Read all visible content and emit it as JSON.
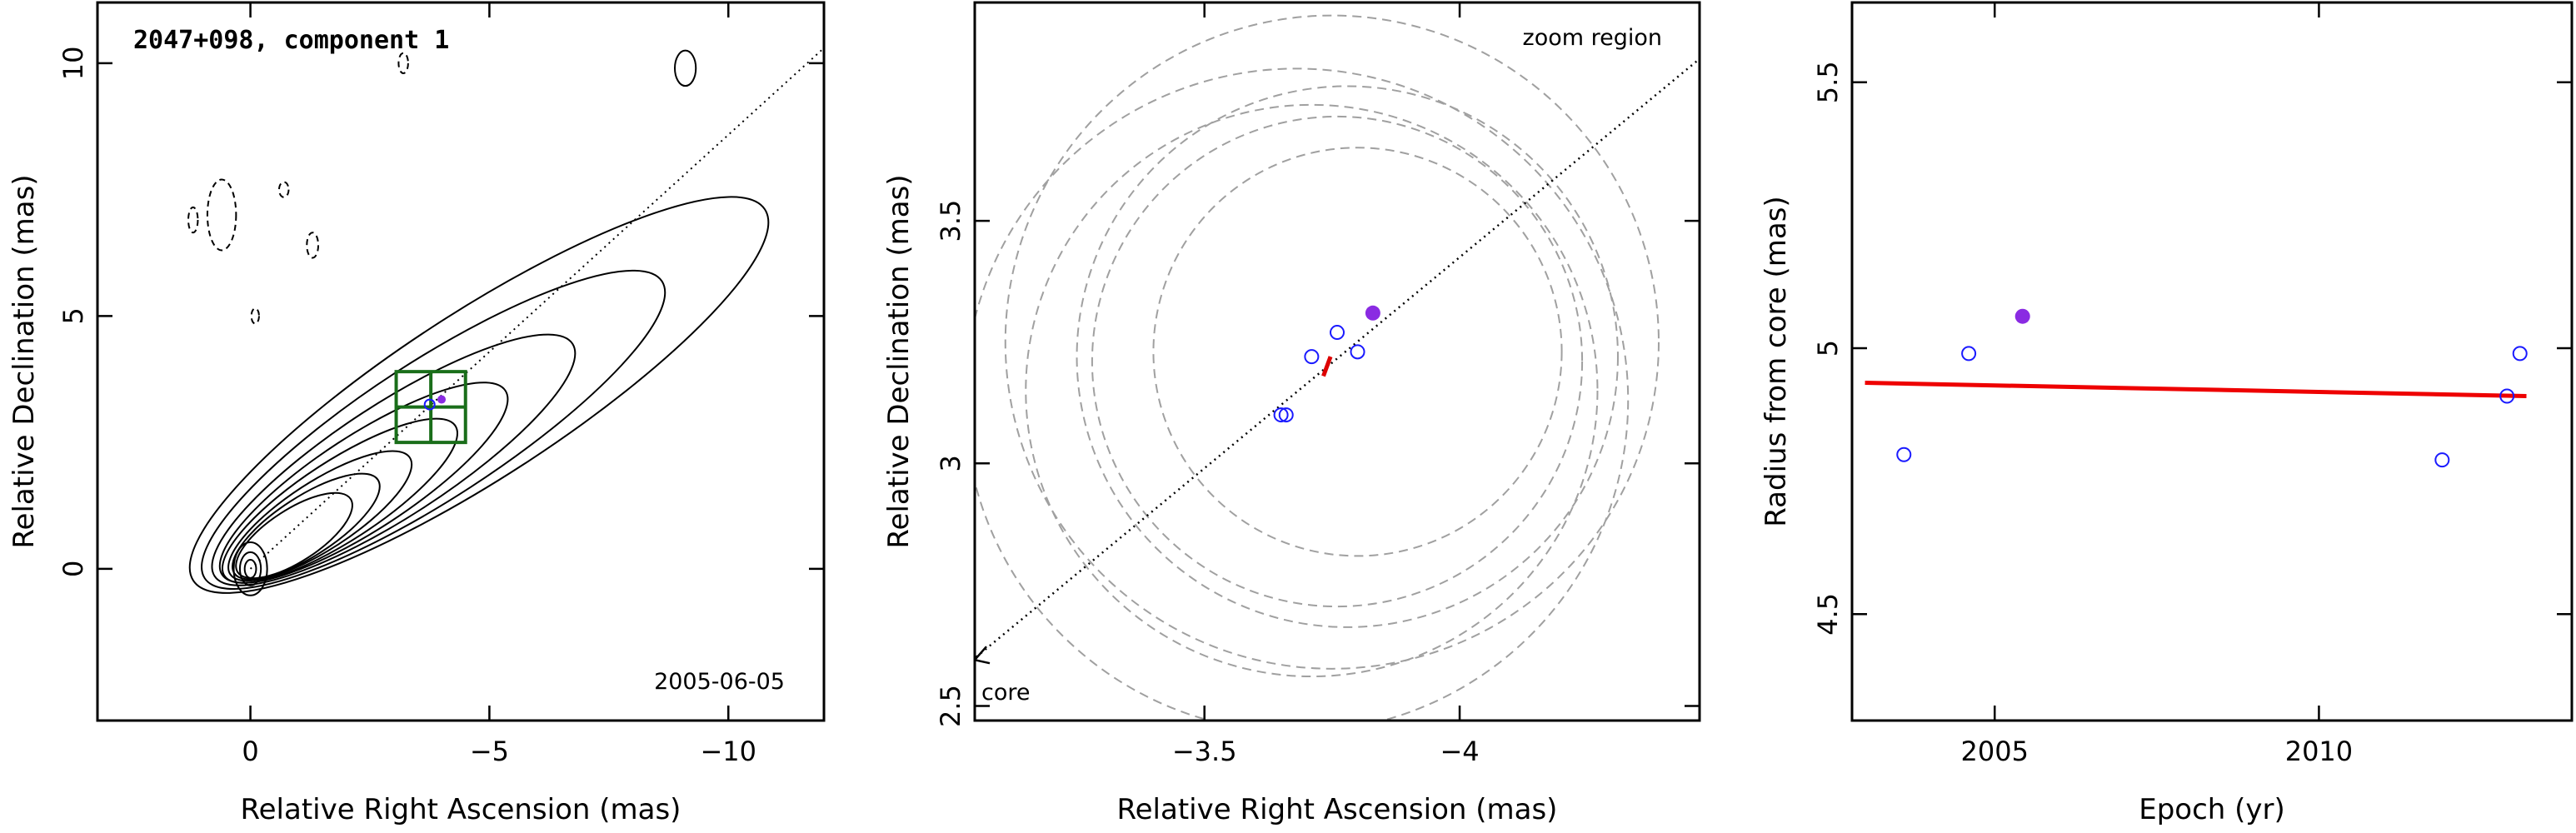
{
  "chart_data": [
    {
      "type": "contour",
      "title": "2047+098, component 1",
      "annotation": "2005-06-05",
      "xlabel": "Relative Right Ascension (mas)",
      "ylabel": "Relative Declination (mas)",
      "xlim": [
        3.2,
        -12
      ],
      "ylim": [
        -3,
        11.2
      ],
      "xticks": [
        0,
        -5,
        -10
      ],
      "xtick_labels": [
        "0",
        "−5",
        "−10"
      ],
      "yticks": [
        0,
        5,
        10
      ],
      "ytick_labels": [
        "0",
        "5",
        "10"
      ],
      "component": {
        "x": -3.75,
        "y": 3.25
      },
      "zoom_box": {
        "x_range": [
          -3.05,
          -4.5
        ],
        "y_range": [
          2.5,
          3.9
        ]
      },
      "jet_axis": {
        "from": [
          0,
          0
        ],
        "to": [
          -12,
          10.3
        ]
      },
      "core_contour_levels": [
        0.22,
        0.28,
        0.35,
        0.45,
        0.57,
        0.72,
        0.92,
        1.15
      ],
      "contour_color": "#000000",
      "box_color": "#1a6e1a"
    },
    {
      "type": "scatter",
      "title": "",
      "annotation_top": "zoom region",
      "annotation_bottom": "core",
      "xlabel": "Relative Right Ascension (mas)",
      "ylabel": "Relative Declination (mas)",
      "xlim": [
        -3.05,
        -4.47
      ],
      "ylim": [
        2.47,
        3.95
      ],
      "xticks": [
        -3.5,
        -4
      ],
      "xtick_labels": [
        "−3.5",
        "−4"
      ],
      "yticks": [
        2.5,
        3,
        3.5
      ],
      "ytick_labels": [
        "2.5",
        "3",
        "3.5"
      ],
      "points": [
        {
          "x": -3.65,
          "y": 3.1
        },
        {
          "x": -3.66,
          "y": 3.1
        },
        {
          "x": -3.71,
          "y": 3.22
        },
        {
          "x": -3.76,
          "y": 3.27
        },
        {
          "x": -3.8,
          "y": 3.23
        }
      ],
      "highlight_point": {
        "x": -3.83,
        "y": 3.31
      },
      "mean_position": {
        "x": -3.74,
        "y": 3.2
      },
      "beam_circles": [
        {
          "x": -3.8,
          "y": 3.23,
          "r": 0.4
        },
        {
          "x": -3.76,
          "y": 3.21,
          "r": 0.48
        },
        {
          "x": -3.78,
          "y": 3.22,
          "r": 0.53
        },
        {
          "x": -3.71,
          "y": 3.15,
          "r": 0.56
        },
        {
          "x": -3.68,
          "y": 3.13,
          "r": 0.65
        },
        {
          "x": -3.75,
          "y": 3.25,
          "r": 0.64
        }
      ],
      "point_color": "#1a1aff",
      "highlight_color": "#8a2be2",
      "circle_color": "#a0a0a0",
      "mean_color": "#dd0000"
    },
    {
      "type": "scatter",
      "title": "",
      "xlabel": "Epoch (yr)",
      "ylabel": "Radius from core (mas)",
      "xlim": [
        2002.8,
        2013.9
      ],
      "ylim": [
        4.3,
        5.65
      ],
      "xticks": [
        2005,
        2010
      ],
      "xtick_labels": [
        "2005",
        "2010"
      ],
      "yticks": [
        4.5,
        5,
        5.5
      ],
      "ytick_labels": [
        "4.5",
        "5",
        "5.5"
      ],
      "points": [
        {
          "x": 2003.6,
          "y": 4.8
        },
        {
          "x": 2004.6,
          "y": 4.99
        },
        {
          "x": 2011.9,
          "y": 4.79
        },
        {
          "x": 2012.9,
          "y": 4.91
        },
        {
          "x": 2013.1,
          "y": 4.99
        }
      ],
      "highlight_point": {
        "x": 2005.43,
        "y": 5.06
      },
      "fit_line": {
        "x": [
          2003.0,
          2013.2
        ],
        "y": [
          4.935,
          4.91
        ]
      },
      "point_color": "#1a1aff",
      "highlight_color": "#8a2be2",
      "fit_color": "#ee0000"
    }
  ]
}
